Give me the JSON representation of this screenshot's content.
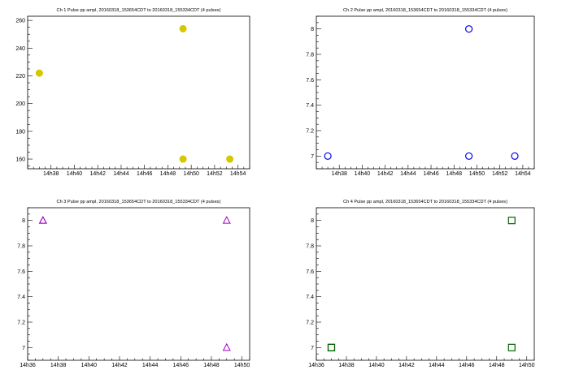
{
  "chart_data": [
    {
      "type": "scatter",
      "title": "Ch 1 Pulse pp ampl, 20160318_153654CDT to 20160318_155334CDT (4 pulses)",
      "x": [
        "14h37",
        "14h49.3",
        "14h49.3",
        "14h53.3"
      ],
      "y": [
        222,
        254,
        160,
        160
      ],
      "marker": "filled-circle",
      "color": "#d4c800",
      "xlim": [
        "14h36",
        "14h55"
      ],
      "xticks": [
        "14h38",
        "14h40",
        "14h42",
        "14h44",
        "14h46",
        "14h48",
        "14h50",
        "14h52",
        "14h54"
      ],
      "ylim": [
        153,
        263
      ],
      "yticks": [
        "160",
        "180",
        "200",
        "220",
        "240",
        "260"
      ],
      "grid": false
    },
    {
      "type": "scatter",
      "title": "Ch 2 Pulse pp ampl, 20160318_153654CDT to 20160318_155334CDT (4 pulses)",
      "x": [
        "14h37",
        "14h49.3",
        "14h49.3",
        "14h53.3"
      ],
      "y": [
        7,
        8,
        7,
        7
      ],
      "marker": "open-circle",
      "color": "#0000ee",
      "xlim": [
        "14h36",
        "14h55"
      ],
      "xticks": [
        "14h38",
        "14h40",
        "14h42",
        "14h44",
        "14h46",
        "14h48",
        "14h50",
        "14h52",
        "14h54"
      ],
      "ylim": [
        6.9,
        8.1
      ],
      "yticks": [
        "7",
        "7.2",
        "7.4",
        "7.6",
        "7.8",
        "8"
      ],
      "grid": false
    },
    {
      "type": "scatter",
      "title": "Ch 3 Pulse pp ampl, 20160318_153654CDT to 20160318_155334CDT (4 pulses)",
      "x": [
        "14h37",
        "14h49",
        "14h49",
        "14h37"
      ],
      "y": [
        8,
        8,
        7,
        8
      ],
      "marker": "open-triangle",
      "color": "#a000c8",
      "xlim": [
        "14h36",
        "14h50.5"
      ],
      "xticks": [
        "14h36",
        "14h38",
        "14h40",
        "14h42",
        "14h44",
        "14h46",
        "14h48",
        "14h50"
      ],
      "ylim": [
        6.9,
        8.1
      ],
      "yticks": [
        "7",
        "7.2",
        "7.4",
        "7.6",
        "7.8",
        "8"
      ],
      "grid": false
    },
    {
      "type": "scatter",
      "title": "Ch 4 Pulse pp ampl, 20160318_153654CDT to 20160318_155334CDT (4 pulses)",
      "x": [
        "14h37",
        "14h49",
        "14h49",
        "14h37"
      ],
      "y": [
        7,
        8,
        7,
        7
      ],
      "marker": "open-square",
      "color": "#006400",
      "xlim": [
        "14h36",
        "14h50.5"
      ],
      "xticks": [
        "14h36",
        "14h38",
        "14h40",
        "14h42",
        "14h44",
        "14h46",
        "14h48",
        "14h50"
      ],
      "ylim": [
        6.9,
        8.1
      ],
      "yticks": [
        "7",
        "7.2",
        "7.4",
        "7.6",
        "7.8",
        "8"
      ],
      "grid": false
    }
  ]
}
